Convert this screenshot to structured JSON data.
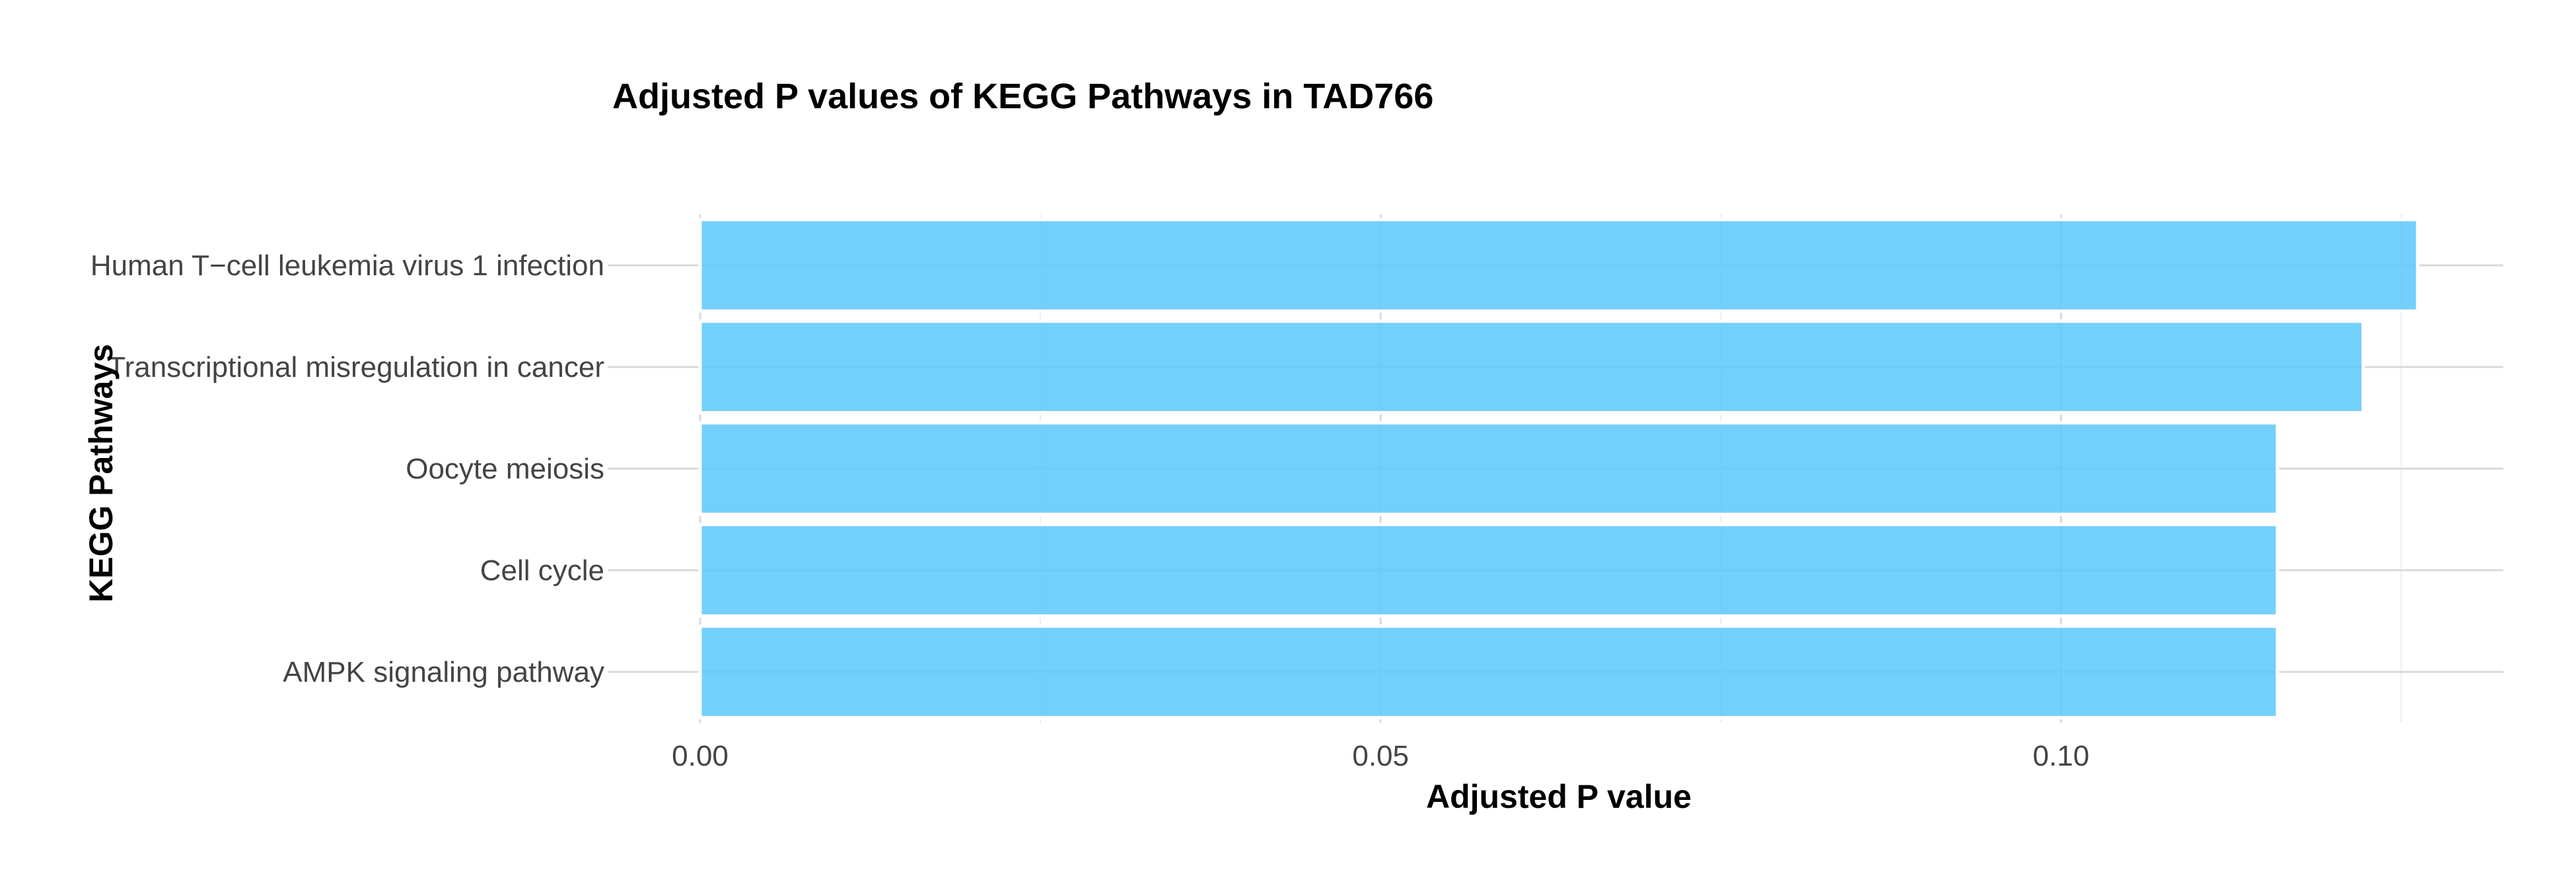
{
  "chart_data": {
    "type": "bar",
    "orientation": "horizontal",
    "title": "Adjusted P values of KEGG Pathways in TAD766",
    "xlabel": "Adjusted P value",
    "ylabel": "KEGG Pathways",
    "categories": [
      "Human T−cell leukemia virus 1 infection",
      "Transcriptional misregulation in cancer",
      "Oocyte meiosis",
      "Cell cycle",
      "AMPK signaling pathway"
    ],
    "values": [
      0.1262,
      0.1222,
      0.1159,
      0.1159,
      0.1159
    ],
    "xticks": [
      "0.00",
      "0.05",
      "0.10"
    ],
    "xtick_values": [
      0,
      0.05,
      0.1
    ],
    "xlim": [
      0,
      0.1325
    ],
    "grid": true,
    "legend": "none",
    "bar_color": "#5BC8F9"
  }
}
